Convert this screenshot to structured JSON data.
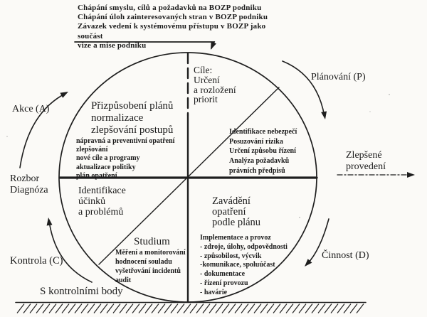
{
  "diagram": {
    "top_note": "Chápání smyslu, cílů a požadavků na BOZP podniku\nChápání úloh zainteresovaných stran v BOZP podniku\nZávazek vedení k systémovému přístupu v BOZP jako součást\nvize a mise podniku",
    "labels": {
      "akce": "Akce (A)",
      "rozbor": "Rozbor\nDiagnóza",
      "kontrola": "Kontrola (C)",
      "s_kontrolnimi": "S kontrolními body",
      "planovani": "Plánování (P)",
      "zlepsene": "Zlepšené\nprovedení",
      "cinnost": "Činnost (D)"
    },
    "quadrants": {
      "act": {
        "heading": "Přizpůsobení plánů\nnormalizace\nzlepšování postupů",
        "details": "nápravná a preventivní opatření\nzlepšování\nnové cíle a programy\naktualizace politiky\nplán opatření"
      },
      "plan": {
        "heading": "Cíle:\nUrčení\na rozložení\npriorit",
        "details": "Identifikace nebezpečí\nPosuzování rizika\nUrčení způsobu řízení\nAnalýza požadavků\nprávních předpisů"
      },
      "check": {
        "heading": "Identifikace\núčinků\na problémů",
        "study": "Studium",
        "details": "Měření a monitorování\nhodnocení souladu\nvyšetřování incidentů\naudit"
      },
      "do": {
        "heading": "Zavádění\nopatření\npodle plánu",
        "details": "Implementace a provoz\n- zdroje, úlohy, odpovědnosti\n- způsobilost, výcvik\n-komunikace, spoluúčast\n- dokumentace\n- řízení provozu\n- havárie"
      }
    },
    "colors": {
      "ink": "#1b1b1b",
      "background": "#fbfaf7"
    }
  }
}
